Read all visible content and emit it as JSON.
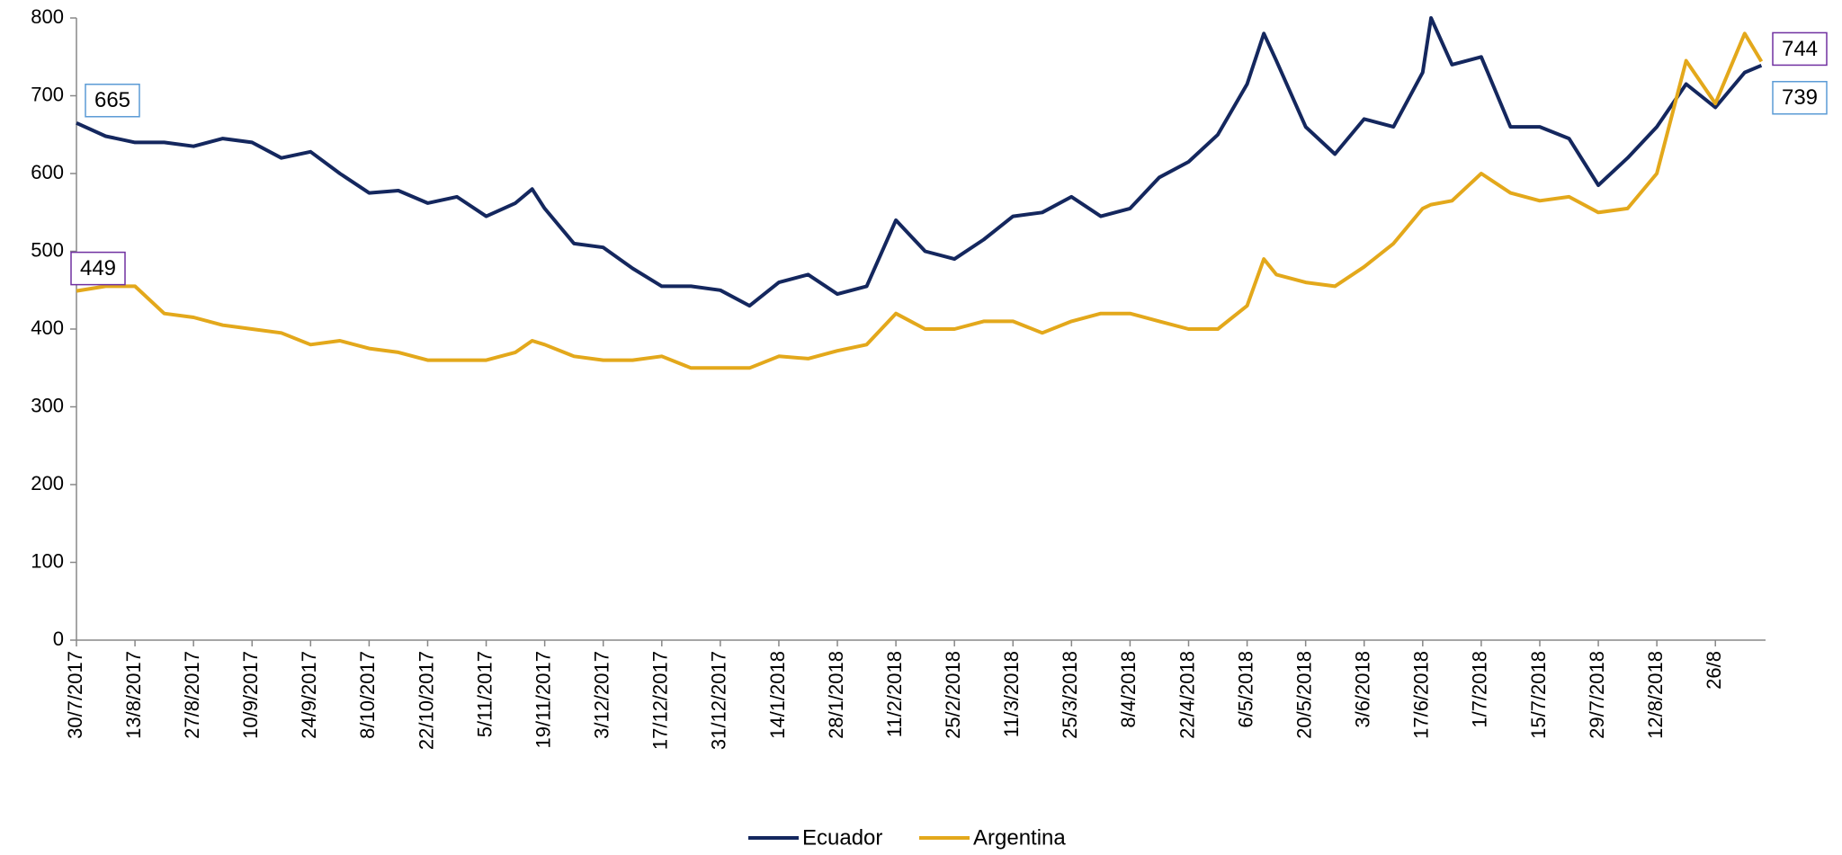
{
  "chart_data": {
    "type": "line",
    "x": [
      "30/7/2017",
      "6/8/2017",
      "13/8/2017",
      "20/8/2017",
      "27/8/2017",
      "3/9/2017",
      "10/9/2017",
      "17/9/2017",
      "24/9/2017",
      "1/10/2017",
      "8/10/2017",
      "15/10/2017",
      "22/10/2017",
      "29/10/2017",
      "5/11/2017",
      "12/11/2017",
      "16/11/2017",
      "19/11/2017",
      "26/11/2017",
      "3/12/2017",
      "10/12/2017",
      "17/12/2017",
      "24/12/2017",
      "31/12/2017",
      "7/1/2018",
      "14/1/2018",
      "21/1/2018",
      "28/1/2018",
      "4/2/2018",
      "11/2/2018",
      "18/2/2018",
      "25/2/2018",
      "4/3/2018",
      "11/3/2018",
      "18/3/2018",
      "25/3/2018",
      "1/4/2018",
      "8/4/2018",
      "15/4/2018",
      "22/4/2018",
      "29/4/2018",
      "6/5/2018",
      "10/5/2018",
      "13/5/2018",
      "20/5/2018",
      "27/5/2018",
      "3/6/2018",
      "10/6/2018",
      "17/6/2018",
      "19/6/2018",
      "24/6/2018",
      "1/7/2018",
      "8/7/2018",
      "15/7/2018",
      "22/7/2018",
      "29/7/2018",
      "5/8/2018",
      "12/8/2018",
      "19/8/2018",
      "26/8/2018",
      "2/9/2018",
      "6/9/2018"
    ],
    "series": [
      {
        "name": "Ecuador",
        "color": "#14275e",
        "values": [
          665,
          648,
          640,
          640,
          635,
          645,
          640,
          620,
          628,
          600,
          575,
          578,
          562,
          570,
          545,
          562,
          580,
          555,
          510,
          505,
          478,
          455,
          455,
          450,
          430,
          460,
          470,
          445,
          455,
          540,
          500,
          490,
          515,
          545,
          550,
          570,
          545,
          555,
          595,
          615,
          650,
          715,
          780,
          745,
          660,
          625,
          670,
          660,
          730,
          800,
          740,
          750,
          660,
          660,
          645,
          585,
          620,
          660,
          715,
          685,
          730,
          739
        ]
      },
      {
        "name": "Argentina",
        "color": "#e3a81b",
        "values": [
          449,
          455,
          455,
          420,
          415,
          405,
          400,
          395,
          380,
          385,
          375,
          370,
          360,
          360,
          360,
          370,
          385,
          380,
          365,
          360,
          360,
          365,
          350,
          350,
          350,
          365,
          362,
          372,
          380,
          420,
          400,
          400,
          410,
          410,
          395,
          410,
          420,
          420,
          410,
          400,
          400,
          430,
          490,
          470,
          460,
          455,
          480,
          510,
          555,
          560,
          565,
          600,
          575,
          565,
          570,
          550,
          555,
          600,
          745,
          690,
          780,
          744
        ]
      }
    ],
    "data_labels": "ends",
    "xlim": [
      "30/7/2017",
      "7/9/2018"
    ],
    "xticks": [
      "30/7/2017",
      "13/8/2017",
      "27/8/2017",
      "10/9/2017",
      "24/9/2017",
      "8/10/2017",
      "22/10/2017",
      "5/11/2017",
      "19/11/2017",
      "3/12/2017",
      "17/12/2017",
      "31/12/2017",
      "14/1/2018",
      "28/1/2018",
      "11/2/2018",
      "25/2/2018",
      "11/3/2018",
      "25/3/2018",
      "8/4/2018",
      "22/4/2018",
      "6/5/2018",
      "20/5/2018",
      "3/6/2018",
      "17/6/2018",
      "1/7/2018",
      "15/7/2018",
      "29/7/2018",
      "12/8/2018",
      {
        "value": "26/8/2018",
        "label": "26/8"
      }
    ],
    "ylim": [
      0,
      800
    ],
    "yticks": [
      0,
      100,
      200,
      300,
      400,
      500,
      600,
      700,
      800
    ],
    "grid": false,
    "legend": "bottom"
  }
}
